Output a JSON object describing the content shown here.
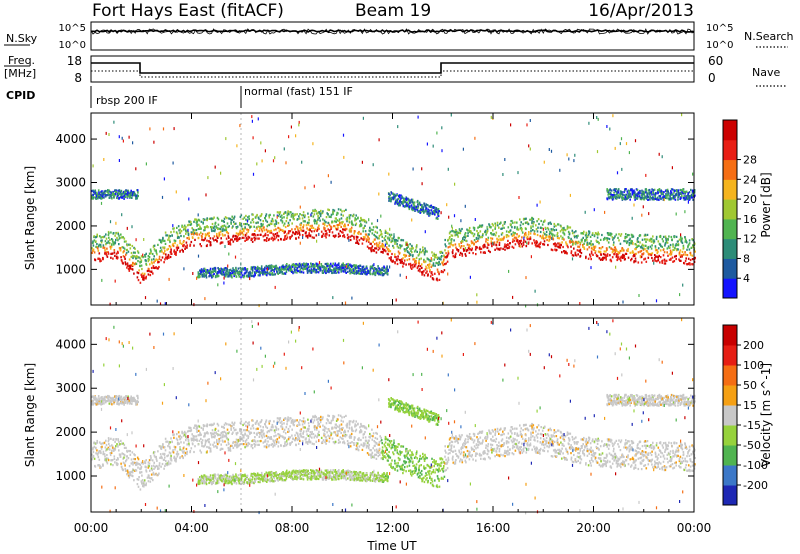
{
  "header": {
    "station": "Fort Hays East (fitACF)",
    "beam": "Beam 19",
    "date": "16/Apr/2013"
  },
  "top_panels": {
    "nsky_label": "N.Sky",
    "nsky_ticks": [
      "10^5",
      "10^0"
    ],
    "nsearch_label": "N.Search",
    "nsearch_ticks": [
      "10^5",
      "10^0"
    ],
    "freq_label": "Freq.",
    "freq_unit": "[MHz]",
    "freq_ticks": [
      "18",
      "8"
    ],
    "nave_label": "Nave",
    "nave_ticks": [
      "60",
      "0"
    ],
    "cpid_label": "CPID",
    "cpid_segments": [
      {
        "label": "rbsp 200 IF",
        "start_hour": 0
      },
      {
        "label": "normal (fast) 151 IF",
        "start_hour": 6
      }
    ]
  },
  "x_axis": {
    "label": "Time UT",
    "ticks": [
      "00:00",
      "04:00",
      "08:00",
      "12:00",
      "16:00",
      "20:00",
      "00:00"
    ]
  },
  "chart_data": [
    {
      "type": "heatmap",
      "name": "power-panel",
      "ylabel": "Slant Range [km]",
      "y_ticks": [
        1000,
        2000,
        3000,
        4000
      ],
      "ylim": [
        180,
        4600
      ],
      "xlim": [
        0,
        24
      ],
      "colorbar": {
        "label": "Power [dB]",
        "ticks": [
          "4",
          "8",
          "12",
          "16",
          "20",
          "24",
          "28"
        ],
        "colors": [
          "#1414ff",
          "#1e5aa0",
          "#2d8c78",
          "#50b450",
          "#a0c832",
          "#f5b41e",
          "#f56e14",
          "#e81e14",
          "#cc0000"
        ]
      },
      "bands": [
        {
          "id": "main",
          "points": [
            [
              0,
              1500
            ],
            [
              1,
              1600
            ],
            [
              2,
              1000
            ],
            [
              3,
              1600
            ],
            [
              4,
              1850
            ],
            [
              6,
              1950
            ],
            [
              8,
              2050
            ],
            [
              10,
              2100
            ],
            [
              12,
              1500
            ],
            [
              13.8,
              1050
            ],
            [
              14.2,
              1600
            ],
            [
              17.5,
              1900
            ],
            [
              20,
              1550
            ],
            [
              24,
              1450
            ]
          ],
          "width": 650
        },
        {
          "id": "lower",
          "points": [
            [
              4.2,
              950
            ],
            [
              6,
              950
            ],
            [
              8,
              1050
            ],
            [
              10,
              1050
            ],
            [
              11.8,
              980
            ]
          ],
          "width": 220
        },
        {
          "id": "upper",
          "points": [
            [
              11.8,
              2700
            ],
            [
              13.8,
              2300
            ]
          ],
          "width": 250
        },
        {
          "id": "upper-right",
          "points": [
            [
              20.5,
              2750
            ],
            [
              24,
              2750
            ]
          ],
          "width": 250
        },
        {
          "id": "upper-left",
          "points": [
            [
              0,
              2750
            ],
            [
              1.8,
              2750
            ]
          ],
          "width": 200
        }
      ]
    },
    {
      "type": "heatmap",
      "name": "velocity-panel",
      "ylabel": "Slant Range [km]",
      "y_ticks": [
        1000,
        2000,
        3000,
        4000
      ],
      "ylim": [
        180,
        4600
      ],
      "xlim": [
        0,
        24
      ],
      "colorbar": {
        "label": "Velocity [m s^-1]",
        "ticks": [
          "200",
          "100",
          "50",
          "15",
          "-15",
          "-50",
          "-100",
          "-200"
        ],
        "colors": [
          "#1e28b4",
          "#3c78c8",
          "#50b450",
          "#96d23c",
          "#c8c8c8",
          "#f5a014",
          "#f56e14",
          "#e61e14",
          "#c80000"
        ]
      }
    }
  ]
}
